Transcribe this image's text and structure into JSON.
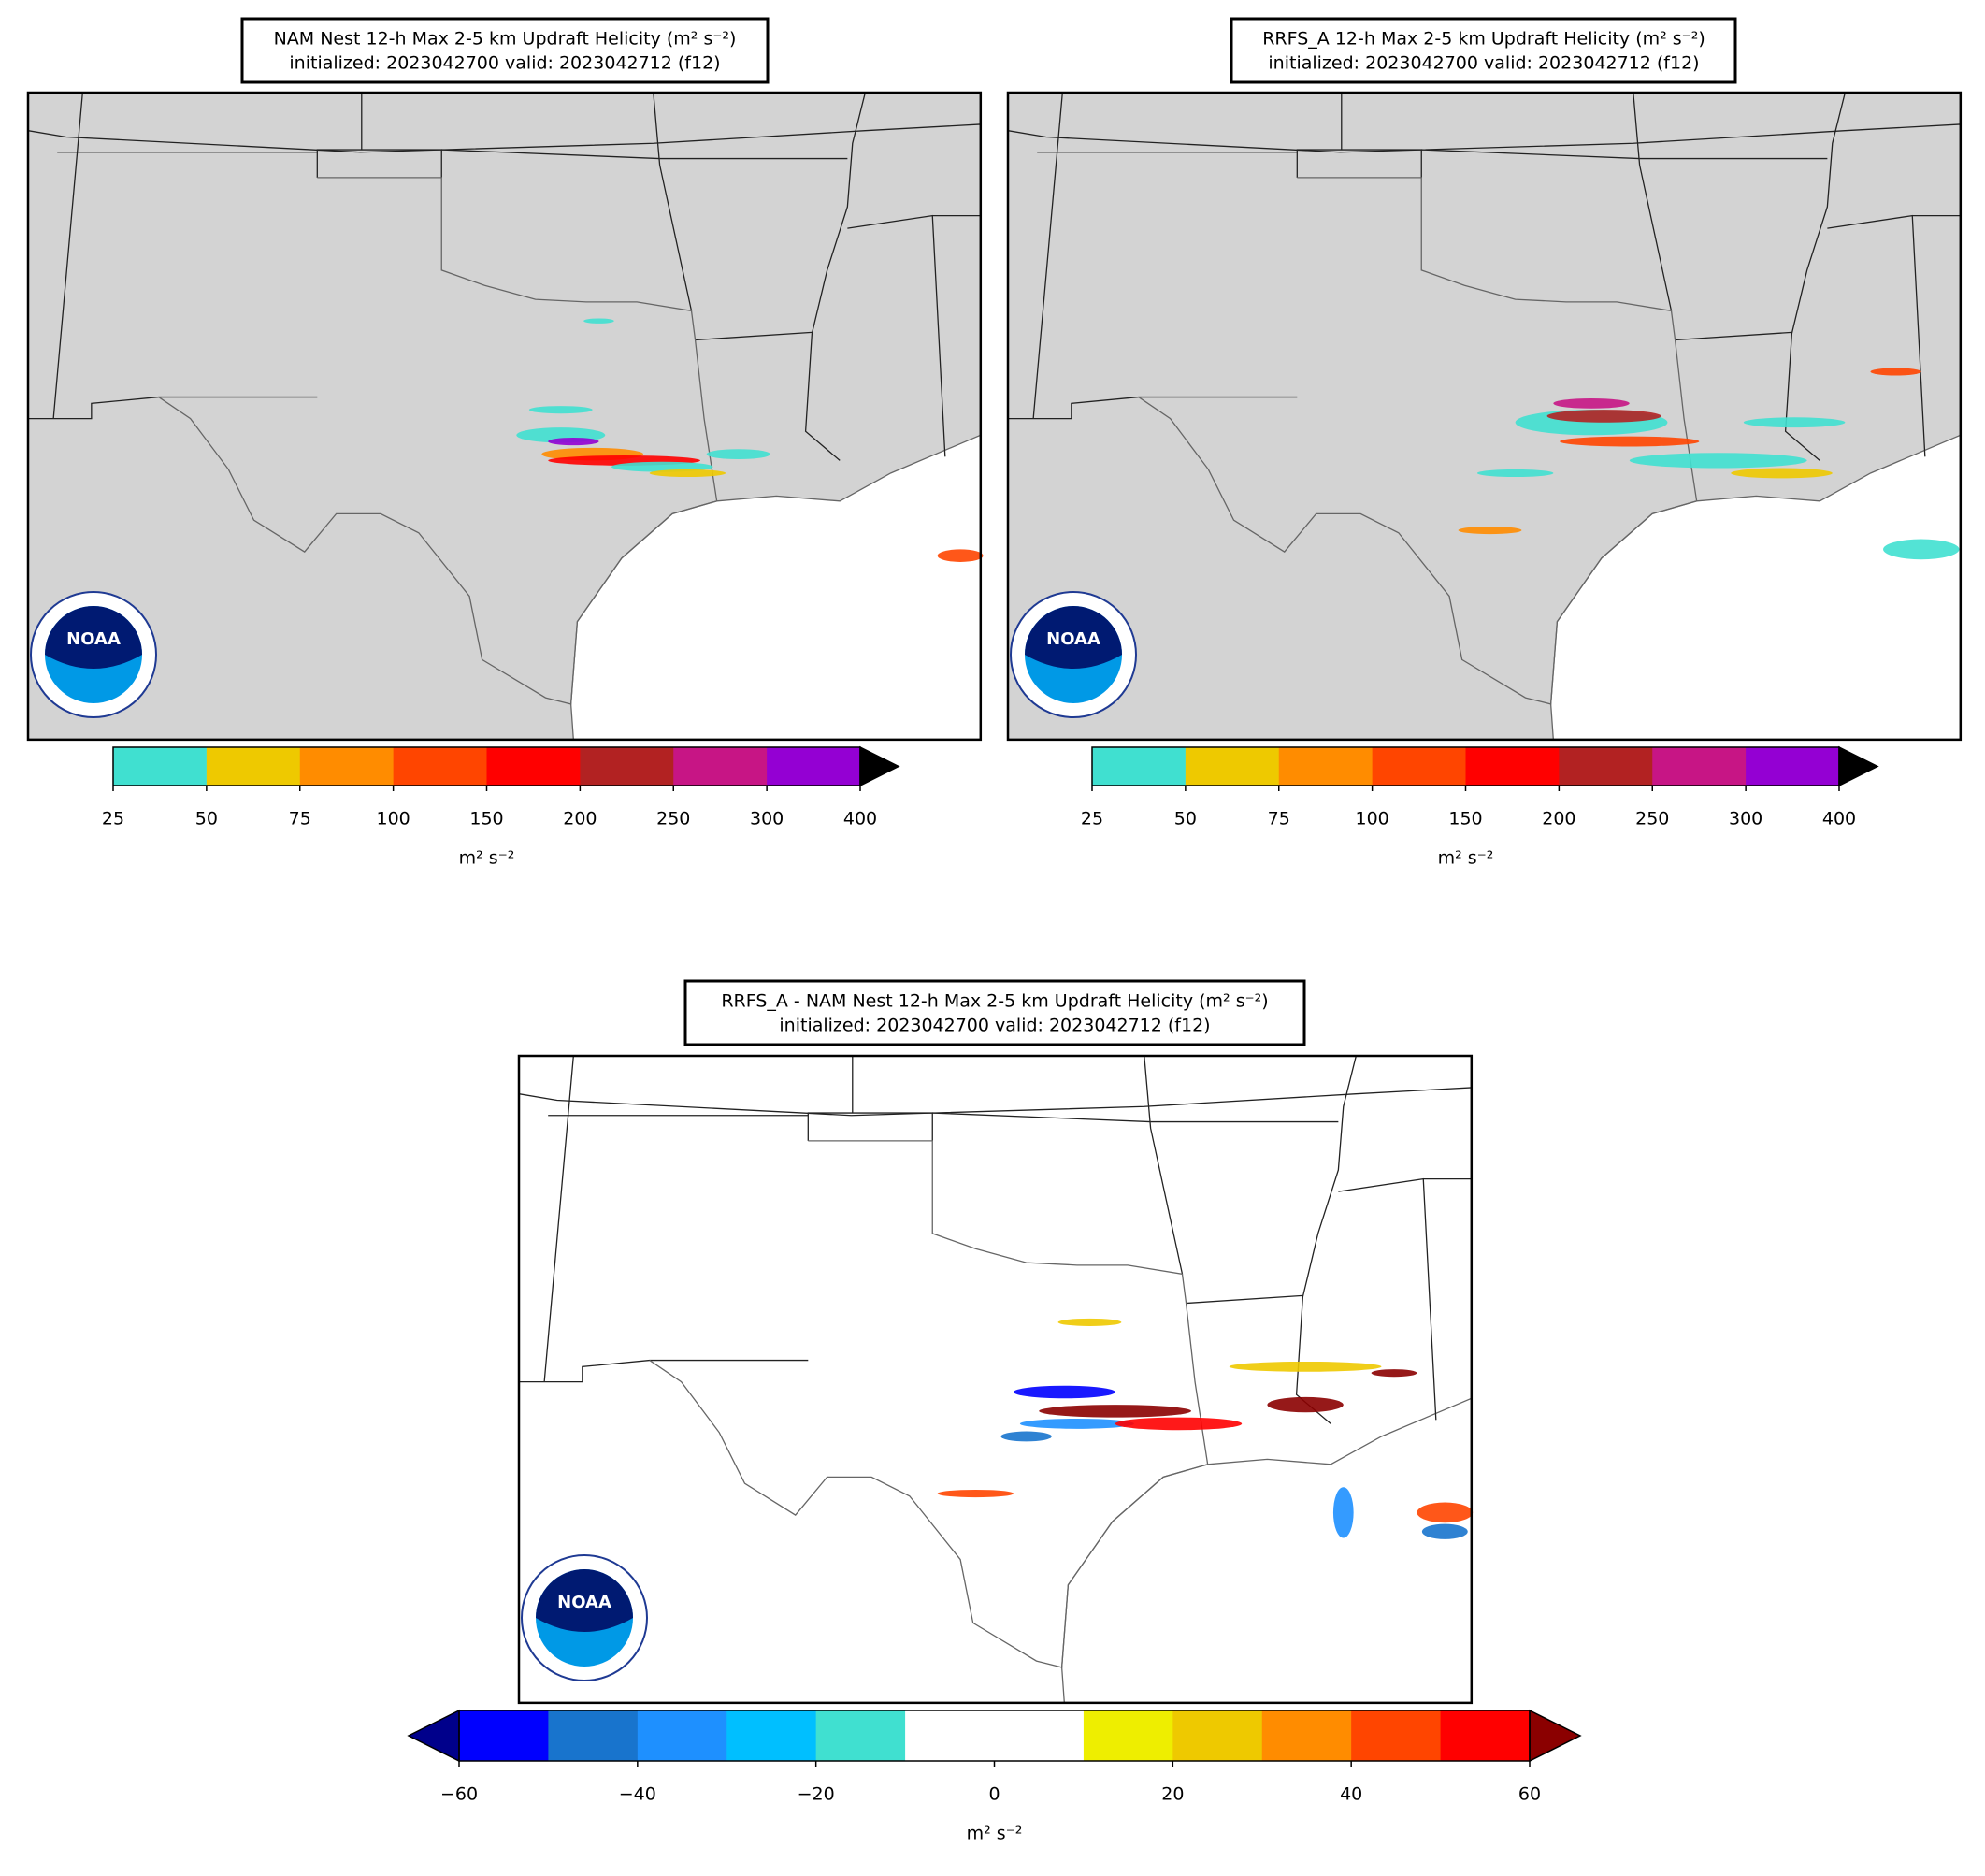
{
  "panels": [
    {
      "title_line1": "NAM Nest 12-h Max 2-5 km Updraft Helicity (m² s⁻²)",
      "title_line2": "initialized: 2023042700 valid: 2023042712 (f12)",
      "land_color": "#d3d3d3",
      "logo_text": "NOAA",
      "colorbar": {
        "bounds": [
          25,
          50,
          75,
          100,
          150,
          200,
          250,
          300,
          400
        ],
        "colors": [
          "#40e0d0",
          "#eec900",
          "#ff8c00",
          "#ff4500",
          "#ff0000",
          "#b22222",
          "#c71585",
          "#9400d3"
        ],
        "extend": "max",
        "over_color": "#000000",
        "ticks": [
          25,
          50,
          75,
          100,
          150,
          200,
          250,
          300,
          400
        ],
        "label": "m² s⁻²"
      }
    },
    {
      "title_line1": "RRFS_A 12-h Max 2-5 km Updraft Helicity (m² s⁻²)",
      "title_line2": "initialized: 2023042700 valid: 2023042712 (f12)",
      "land_color": "#d3d3d3",
      "logo_text": "NOAA",
      "colorbar": {
        "bounds": [
          25,
          50,
          75,
          100,
          150,
          200,
          250,
          300,
          400
        ],
        "colors": [
          "#40e0d0",
          "#eec900",
          "#ff8c00",
          "#ff4500",
          "#ff0000",
          "#b22222",
          "#c71585",
          "#9400d3"
        ],
        "extend": "max",
        "over_color": "#000000",
        "ticks": [
          25,
          50,
          75,
          100,
          150,
          200,
          250,
          300,
          400
        ],
        "label": "m² s⁻²"
      }
    },
    {
      "title_line1": "RRFS_A - NAM Nest 12-h Max 2-5 km Updraft Helicity (m² s⁻²)",
      "title_line2": "initialized: 2023042700 valid: 2023042712 (f12)",
      "land_color": "#ffffff",
      "logo_text": "NOAA",
      "colorbar": {
        "bounds": [
          -60,
          -50,
          -40,
          -30,
          -20,
          -10,
          0,
          10,
          20,
          30,
          40,
          50,
          60
        ],
        "colors": [
          "#0000ff",
          "#1874cd",
          "#1e90ff",
          "#00bfff",
          "#40e0d0",
          "#ffffff",
          "#ffffff",
          "#eeee00",
          "#eec900",
          "#ff8c00",
          "#ff4500",
          "#ff0000"
        ],
        "extend": "both",
        "over_color": "#8b0000",
        "under_color": "#00008b",
        "ticks": [
          {
            "value": -60,
            "label": "−60"
          },
          {
            "value": -40,
            "label": "−40"
          },
          {
            "value": -20,
            "label": "−20"
          },
          0,
          20,
          40,
          60
        ],
        "label": "m² s⁻²"
      }
    }
  ]
}
